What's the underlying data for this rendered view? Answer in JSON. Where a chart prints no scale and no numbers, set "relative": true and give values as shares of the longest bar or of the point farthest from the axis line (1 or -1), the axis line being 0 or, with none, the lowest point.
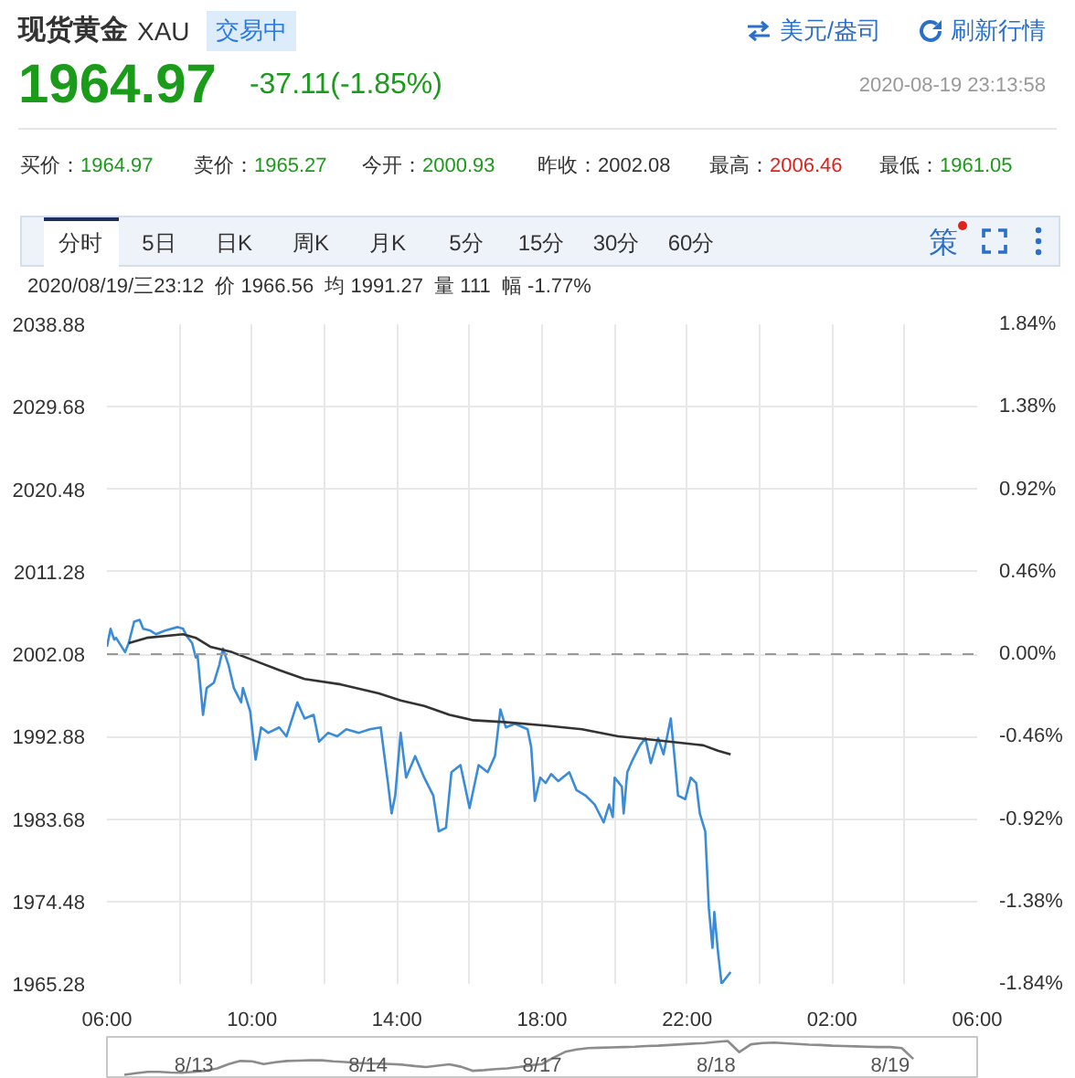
{
  "chart_data": [
    {
      "type": "line",
      "title": "现货黄金",
      "annotations": [
        "XAU",
        "交易中",
        "美元/盎司",
        "刷新行情",
        "1964.97",
        "-37.11(-1.85%)",
        "2020-08-19 23:13:58",
        "买价：",
        "1964.97",
        "卖价：",
        "1965.27",
        "今开：",
        "2000.93",
        "昨收：",
        "2002.08",
        "最高：",
        "2006.46",
        "最低：",
        "1961.05",
        "分时",
        "5日",
        "日K",
        "周K",
        "月K",
        "5分",
        "15分",
        "30分",
        "60分",
        "策",
        "2020/08/19/三23:12  价 1966.56  均 1991.27  量 111  幅 -1.77%"
      ],
      "xlim": [
        "2020-08-19T06:00",
        "2020-08-20T06:00"
      ],
      "xticks": [
        {
          "value": "2020-08-19T06:00",
          "label": "06:00"
        },
        {
          "value": "2020-08-19T08:00",
          "label": null
        },
        {
          "value": "2020-08-19T10:00",
          "label": "10:00"
        },
        {
          "value": "2020-08-19T12:00",
          "label": null
        },
        {
          "value": "2020-08-19T14:00",
          "label": "14:00"
        },
        {
          "value": "2020-08-19T16:00",
          "label": null
        },
        {
          "value": "2020-08-19T18:00",
          "label": "18:00"
        },
        {
          "value": "2020-08-19T20:00",
          "label": null
        },
        {
          "value": "2020-08-19T22:00",
          "label": "22:00"
        },
        {
          "value": "2020-08-20T00:00",
          "label": null
        },
        {
          "value": "2020-08-20T02:00",
          "label": "02:00"
        },
        {
          "value": "2020-08-20T04:00",
          "label": null
        },
        {
          "value": "2020-08-20T06:00",
          "label": "06:00"
        }
      ],
      "ylim": [
        1965.28,
        2038.88
      ],
      "yticks": [
        1965.28,
        1974.48,
        1983.68,
        1992.88,
        2002.08,
        2011.28,
        2020.48,
        2029.68,
        2038.88
      ],
      "y2lim": [
        -1.84,
        1.84
      ],
      "y2ticks": [
        {
          "value": -1.84,
          "label": "-1.84%"
        },
        {
          "value": -1.38,
          "label": "-1.38%"
        },
        {
          "value": -0.92,
          "label": "-0.92%"
        },
        {
          "value": -0.46,
          "label": "-0.46%"
        },
        {
          "value": 0,
          "label": "0.00%"
        },
        {
          "value": 0.46,
          "label": "0.46%"
        },
        {
          "value": 0.92,
          "label": "0.92%"
        },
        {
          "value": 1.38,
          "label": "1.38%"
        },
        {
          "value": 1.84,
          "label": "1.84%"
        }
      ],
      "grid": true,
      "ref_lines": [
        {
          "axis": "y",
          "value": 2002.08,
          "color": "#999999",
          "line_style": "dashed"
        }
      ],
      "series": [
        {
          "color": "#3b8cd8",
          "x": [
            "2020-08-19T06:00",
            "2020-08-19T06:06",
            "2020-08-19T06:12",
            "2020-08-19T06:15",
            "2020-08-19T06:30",
            "2020-08-19T06:36",
            "2020-08-19T06:45",
            "2020-08-19T06:54",
            "2020-08-19T07:00",
            "2020-08-19T07:12",
            "2020-08-19T07:21",
            "2020-08-19T07:36",
            "2020-08-19T07:57",
            "2020-08-19T08:06",
            "2020-08-19T08:12",
            "2020-08-19T08:21",
            "2020-08-19T08:27",
            "2020-08-19T08:30",
            "2020-08-19T08:39",
            "2020-08-19T08:45",
            "2020-08-19T08:57",
            "2020-08-19T09:06",
            "2020-08-19T09:12",
            "2020-08-19T09:21",
            "2020-08-19T09:30",
            "2020-08-19T09:42",
            "2020-08-19T09:45",
            "2020-08-19T09:57",
            "2020-08-19T10:06",
            "2020-08-19T10:15",
            "2020-08-19T10:27",
            "2020-08-19T10:45",
            "2020-08-19T10:57",
            "2020-08-19T11:15",
            "2020-08-19T11:27",
            "2020-08-19T11:42",
            "2020-08-19T11:51",
            "2020-08-19T12:06",
            "2020-08-19T12:21",
            "2020-08-19T12:36",
            "2020-08-19T12:57",
            "2020-08-19T13:15",
            "2020-08-19T13:33",
            "2020-08-19T13:45",
            "2020-08-19T13:51",
            "2020-08-19T13:57",
            "2020-08-19T14:06",
            "2020-08-19T14:15",
            "2020-08-19T14:30",
            "2020-08-19T14:45",
            "2020-08-19T15:00",
            "2020-08-19T15:09",
            "2020-08-19T15:21",
            "2020-08-19T15:30",
            "2020-08-19T15:45",
            "2020-08-19T16:00",
            "2020-08-19T16:15",
            "2020-08-19T16:30",
            "2020-08-19T16:42",
            "2020-08-19T16:51",
            "2020-08-19T17:00",
            "2020-08-19T17:15",
            "2020-08-19T17:36",
            "2020-08-19T17:42",
            "2020-08-19T17:48",
            "2020-08-19T17:57",
            "2020-08-19T18:06",
            "2020-08-19T18:15",
            "2020-08-19T18:27",
            "2020-08-19T18:45",
            "2020-08-19T18:57",
            "2020-08-19T19:12",
            "2020-08-19T19:27",
            "2020-08-19T19:42",
            "2020-08-19T19:51",
            "2020-08-19T19:57",
            "2020-08-19T20:00",
            "2020-08-19T20:12",
            "2020-08-19T20:15",
            "2020-08-19T20:21",
            "2020-08-19T20:30",
            "2020-08-19T20:42",
            "2020-08-19T20:51",
            "2020-08-19T21:00",
            "2020-08-19T21:12",
            "2020-08-19T21:21",
            "2020-08-19T21:27",
            "2020-08-19T21:33",
            "2020-08-19T21:39",
            "2020-08-19T21:45",
            "2020-08-19T21:57",
            "2020-08-19T22:06",
            "2020-08-19T22:15",
            "2020-08-19T22:21",
            "2020-08-19T22:30",
            "2020-08-19T22:36",
            "2020-08-19T22:42",
            "2020-08-19T22:45",
            "2020-08-19T22:51",
            "2020-08-19T22:57",
            "2020-08-19T23:12"
          ],
          "values": [
            2002.9,
            2004.9,
            2003.7,
            2003.9,
            2002.3,
            2003.3,
            2005.7,
            2005.9,
            2004.9,
            2004.7,
            2004.3,
            2004.7,
            2005.1,
            2004.9,
            2004.1,
            2003.3,
            2001.7,
            2001.9,
            1995.3,
            1998.3,
            1998.9,
            2000.9,
            2002.7,
            2000.9,
            1998.3,
            1996.7,
            1998.3,
            1995.7,
            1990.3,
            1993.9,
            1993.3,
            1993.9,
            1992.9,
            1996.7,
            1994.9,
            1995.3,
            1992.3,
            1993.3,
            1992.9,
            1993.7,
            1993.3,
            1993.7,
            1993.9,
            1987.7,
            1984.3,
            1986.3,
            1993.3,
            1988.3,
            1990.7,
            1988.3,
            1986.3,
            1982.3,
            1982.7,
            1988.9,
            1989.7,
            1984.9,
            1989.7,
            1988.9,
            1990.7,
            1995.9,
            1993.9,
            1994.3,
            1993.7,
            1991.7,
            1985.7,
            1988.3,
            1987.7,
            1988.7,
            1987.9,
            1988.9,
            1986.9,
            1986.3,
            1985.3,
            1983.3,
            1985.3,
            1983.9,
            1988.3,
            1987.3,
            1984.3,
            1988.9,
            1990.3,
            1991.9,
            1992.7,
            1989.9,
            1992.7,
            1990.9,
            1992.9,
            1994.9,
            1990.7,
            1986.3,
            1985.9,
            1988.3,
            1987.7,
            1984.3,
            1982.3,
            1973.7,
            1969.3,
            1973.3,
            1968.9,
            1965.3,
            1966.6
          ]
        },
        {
          "color": "#333333",
          "x": [
            "2020-08-19T06:36",
            "2020-08-19T07:06",
            "2020-08-19T08:06",
            "2020-08-19T08:27",
            "2020-08-19T08:51",
            "2020-08-19T09:27",
            "2020-08-19T10:06",
            "2020-08-19T10:45",
            "2020-08-19T11:27",
            "2020-08-19T12:27",
            "2020-08-19T13:30",
            "2020-08-19T14:06",
            "2020-08-19T14:45",
            "2020-08-19T15:27",
            "2020-08-19T16:06",
            "2020-08-19T16:57",
            "2020-08-19T18:06",
            "2020-08-19T19:06",
            "2020-08-19T20:06",
            "2020-08-19T21:06",
            "2020-08-19T22:27",
            "2020-08-19T22:51",
            "2020-08-19T23:12"
          ],
          "values": [
            2003.3,
            2003.9,
            2004.3,
            2003.9,
            2002.9,
            2002.3,
            2001.3,
            2000.3,
            1999.3,
            1998.7,
            1997.7,
            1996.9,
            1996.3,
            1995.3,
            1994.7,
            1994.5,
            1994.1,
            1993.7,
            1992.9,
            1992.5,
            1991.9,
            1991.3,
            1990.9
          ]
        }
      ]
    },
    {
      "type": "line",
      "relative": true,
      "categories": [
        null,
        null,
        null,
        null,
        null,
        null,
        null,
        "8/13",
        null,
        null,
        null,
        null,
        null,
        null,
        null,
        null,
        null,
        null,
        null,
        null,
        null,
        null,
        "8/14",
        null,
        null,
        null,
        null,
        null,
        null,
        null,
        null,
        null,
        null,
        null,
        null,
        null,
        null,
        "8/17",
        null,
        null,
        null,
        null,
        null,
        null,
        null,
        null,
        null,
        null,
        null,
        null,
        null,
        null,
        "8/18",
        null,
        null,
        null,
        null,
        null,
        null,
        null,
        null,
        null,
        null,
        null,
        null,
        null,
        null,
        "8/19",
        null,
        null,
        null,
        null,
        null,
        null,
        null
      ],
      "series": [
        {
          "color": "#8c8c8c",
          "values": [
            null,
            0,
            0.05,
            0.09,
            0.09,
            0.07,
            0.06,
            0.09,
            0.12,
            0.19,
            0.32,
            0.41,
            0.4,
            0.32,
            0.37,
            0.41,
            0.42,
            0.43,
            0.43,
            0.4,
            0.38,
            0.35,
            0.34,
            0.33,
            0.32,
            0.3,
            0.26,
            0.23,
            0.27,
            0.31,
            0.24,
            0.12,
            0.14,
            0.17,
            0.19,
            0.23,
            0.28,
            0.32,
            0.51,
            0.68,
            0.75,
            0.79,
            0.8,
            0.81,
            0.82,
            0.83,
            0.85,
            0.86,
            0.88,
            0.9,
            0.92,
            0.94,
            0.97,
            1,
            0.67,
            0.9,
            0.94,
            0.95,
            0.93,
            0.91,
            0.89,
            0.88,
            0.86,
            0.85,
            0.84,
            0.83,
            0.82,
            0.82,
            0.79,
            0.47,
            null,
            null,
            null,
            null,
            null
          ]
        }
      ]
    }
  ]
}
